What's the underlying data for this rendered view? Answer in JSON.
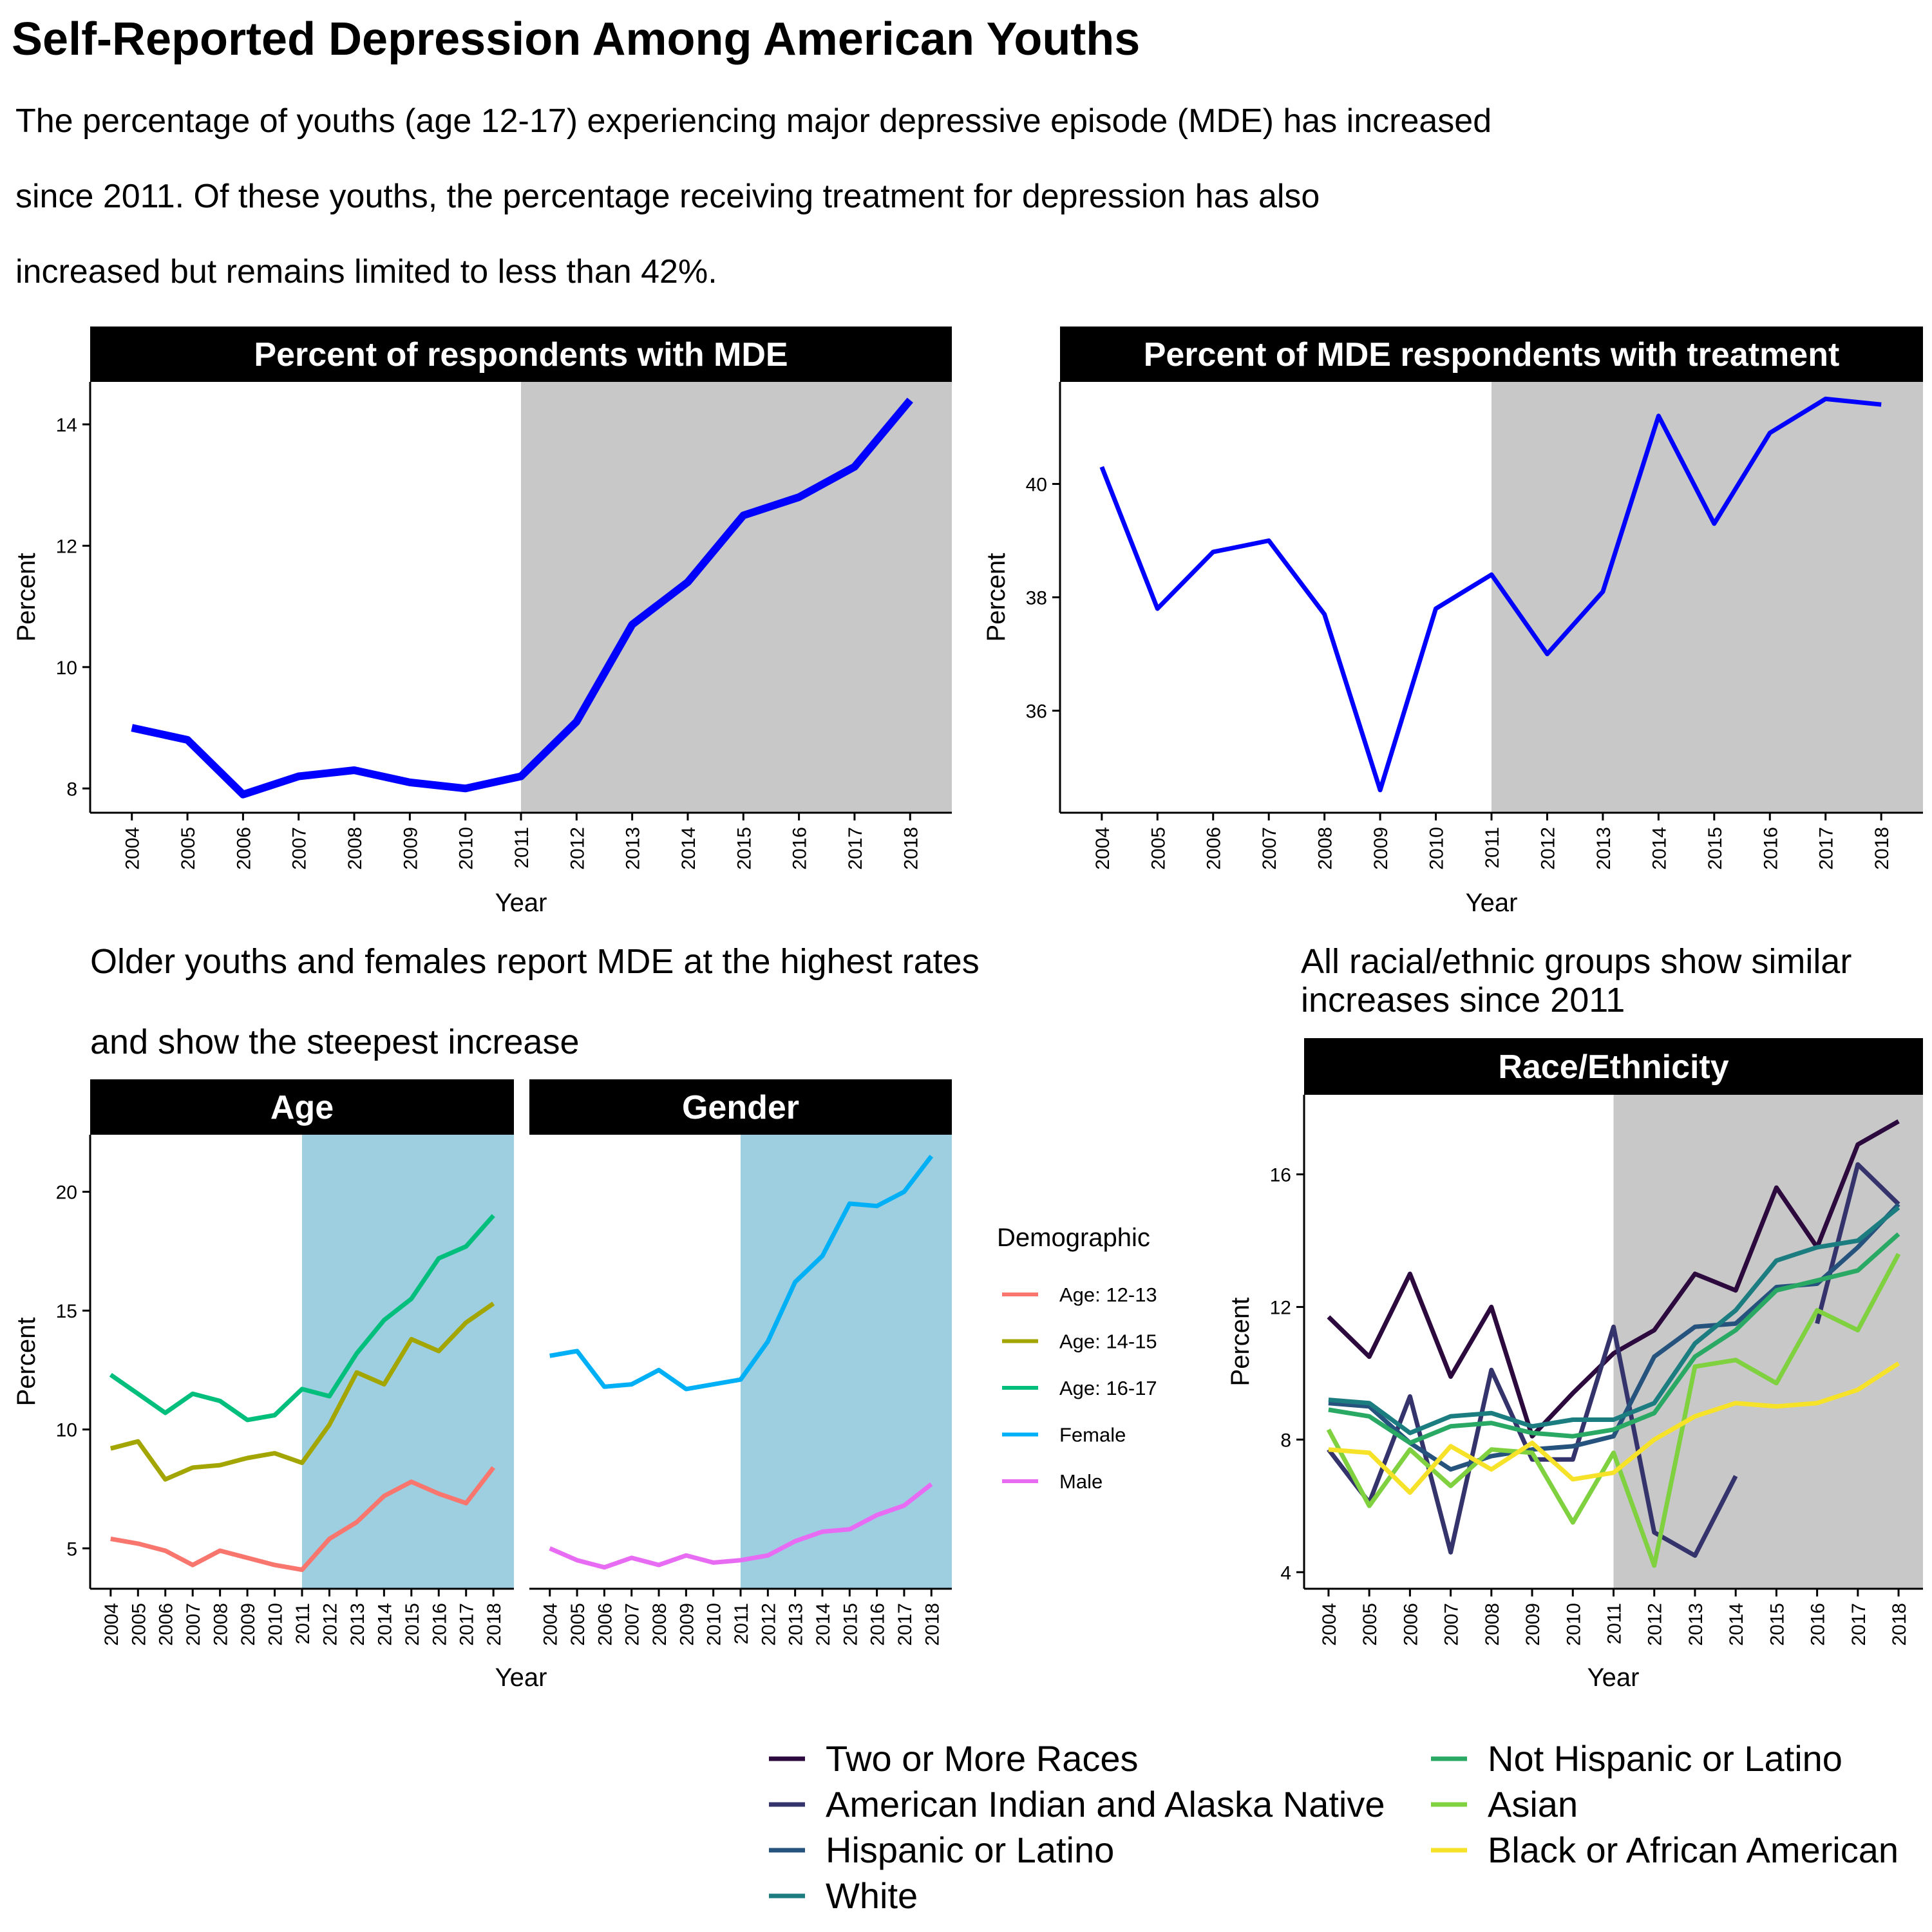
{
  "header": {
    "title": "Self-Reported Depression Among American Youths",
    "subtitle_lines": [
      "The percentage of youths (age 12-17) experiencing major depressive episode (MDE) has increased",
      " since 2011. Of these youths, the percentage receiving treatment for depression has also",
      "increased but remains limited to less than 42%."
    ]
  },
  "captions": {
    "demographics_line1": "Older youths and females report MDE at the highest rates",
    "demographics_line2": "and show the steepest increase",
    "race_line1": "All racial/ethnic groups show similar",
    "race_line2": "increases since 2011"
  },
  "colors": {
    "strip": "#000000",
    "shade_grey": "#c8c8c8",
    "shade_blue": "#9ecfe0",
    "main_line": "#0000ff"
  },
  "chart_data": [
    {
      "id": "mde",
      "type": "line",
      "title": "Percent of respondents with MDE",
      "xlabel": "Year",
      "ylabel": "Percent",
      "x": [
        2004,
        2005,
        2006,
        2007,
        2008,
        2009,
        2010,
        2011,
        2012,
        2013,
        2014,
        2015,
        2016,
        2017,
        2018
      ],
      "xlim": [
        2003.25,
        2018.75
      ],
      "ylim": [
        7.6,
        14.7
      ],
      "yticks": [
        8,
        10,
        12,
        14
      ],
      "shade_from": 2011,
      "series": [
        {
          "values": [
            9.0,
            8.8,
            7.9,
            8.2,
            8.3,
            8.1,
            8.0,
            8.2,
            9.1,
            10.7,
            11.4,
            12.5,
            12.8,
            13.3,
            14.4
          ]
        }
      ]
    },
    {
      "id": "treatment",
      "type": "line",
      "title": "Percent of MDE respondents with treatment",
      "xlabel": "Year",
      "ylabel": "Percent",
      "x": [
        2004,
        2005,
        2006,
        2007,
        2008,
        2009,
        2010,
        2011,
        2012,
        2013,
        2014,
        2015,
        2016,
        2017,
        2018
      ],
      "xlim": [
        2003.25,
        2018.75
      ],
      "ylim": [
        34.2,
        41.8
      ],
      "yticks": [
        36,
        38,
        40
      ],
      "shade_from": 2011,
      "series": [
        {
          "values": [
            40.3,
            37.8,
            38.8,
            39.0,
            37.7,
            34.6,
            37.8,
            38.4,
            37.0,
            38.1,
            41.2,
            39.3,
            40.9,
            41.5,
            41.4
          ]
        }
      ]
    },
    {
      "id": "age",
      "type": "line",
      "title": "Age",
      "xlabel": "Year",
      "ylabel": "Percent",
      "x": [
        2004,
        2005,
        2006,
        2007,
        2008,
        2009,
        2010,
        2011,
        2012,
        2013,
        2014,
        2015,
        2016,
        2017,
        2018
      ],
      "xlim": [
        2003.25,
        2018.75
      ],
      "ylim": [
        3.3,
        22.4
      ],
      "yticks": [
        5,
        10,
        15,
        20
      ],
      "shade_from": 2011,
      "series": [
        {
          "name": "Age: 12-13",
          "color": "#f8766d",
          "values": [
            5.4,
            5.2,
            4.9,
            4.3,
            4.9,
            4.6,
            4.3,
            4.1,
            5.4,
            6.1,
            7.2,
            7.8,
            7.3,
            6.9,
            8.4
          ]
        },
        {
          "name": "Age: 14-15",
          "color": "#a3a500",
          "values": [
            9.2,
            9.5,
            7.9,
            8.4,
            8.5,
            8.8,
            9.0,
            8.6,
            10.2,
            12.4,
            11.9,
            13.8,
            13.3,
            14.5,
            15.3
          ]
        },
        {
          "name": "Age: 16-17",
          "color": "#00bf7d",
          "values": [
            12.3,
            11.5,
            10.7,
            11.5,
            11.2,
            10.4,
            10.6,
            11.7,
            11.4,
            13.2,
            14.6,
            15.5,
            17.2,
            17.7,
            19.0
          ]
        }
      ]
    },
    {
      "id": "gender",
      "type": "line",
      "title": "Gender",
      "xlabel": "Year",
      "x": [
        2004,
        2005,
        2006,
        2007,
        2008,
        2009,
        2010,
        2011,
        2012,
        2013,
        2014,
        2015,
        2016,
        2017,
        2018
      ],
      "xlim": [
        2003.25,
        2018.75
      ],
      "ylim": [
        3.3,
        22.4
      ],
      "shade_from": 2011,
      "series": [
        {
          "name": "Female",
          "color": "#00b0f6",
          "values": [
            13.1,
            13.3,
            11.8,
            11.9,
            12.5,
            11.7,
            11.9,
            12.1,
            13.7,
            16.2,
            17.3,
            19.5,
            19.4,
            20.0,
            21.5
          ]
        },
        {
          "name": "Male",
          "color": "#e76bf3",
          "values": [
            5.0,
            4.5,
            4.2,
            4.6,
            4.3,
            4.7,
            4.4,
            4.5,
            4.7,
            5.3,
            5.7,
            5.8,
            6.4,
            6.8,
            7.7
          ]
        }
      ]
    },
    {
      "id": "race",
      "type": "line",
      "title": "Race/Ethnicity",
      "xlabel": "Year",
      "ylabel": "Percent",
      "x": [
        2004,
        2005,
        2006,
        2007,
        2008,
        2009,
        2010,
        2011,
        2012,
        2013,
        2014,
        2015,
        2016,
        2017,
        2018
      ],
      "xlim": [
        2003.4,
        2018.6
      ],
      "ylim": [
        3.5,
        18.4
      ],
      "yticks": [
        4,
        8,
        12,
        16
      ],
      "shade_from": 2011,
      "series": [
        {
          "name": "Two or More Races",
          "color": "#2d0a3e",
          "values": [
            11.7,
            10.5,
            13.0,
            9.9,
            12.0,
            8.1,
            9.4,
            10.6,
            11.3,
            13.0,
            12.5,
            15.6,
            13.8,
            16.9,
            17.6
          ]
        },
        {
          "name": "American Indian and Alaska Native",
          "color": "#35336c",
          "values": [
            7.7,
            6.1,
            9.3,
            4.6,
            10.1,
            7.4,
            7.4,
            11.4,
            5.2,
            4.5,
            6.9,
            null,
            11.5,
            16.3,
            15.1
          ]
        },
        {
          "name": "Hispanic or Latino",
          "color": "#26537d",
          "values": [
            9.1,
            9.0,
            7.9,
            7.1,
            7.5,
            7.7,
            7.8,
            8.1,
            10.5,
            11.4,
            11.5,
            12.6,
            12.7,
            13.8,
            15.1
          ]
        },
        {
          "name": "White",
          "color": "#1c7d80",
          "values": [
            9.2,
            9.1,
            8.2,
            8.7,
            8.8,
            8.4,
            8.6,
            8.6,
            9.1,
            10.9,
            11.9,
            13.4,
            13.8,
            14.0,
            15.0
          ]
        },
        {
          "name": "Not Hispanic or Latino",
          "color": "#2aa964",
          "values": [
            8.9,
            8.7,
            7.9,
            8.4,
            8.5,
            8.2,
            8.1,
            8.3,
            8.8,
            10.5,
            11.3,
            12.5,
            12.8,
            13.1,
            14.2
          ]
        },
        {
          "name": "Asian",
          "color": "#7fd13f",
          "values": [
            8.3,
            6.0,
            7.7,
            6.6,
            7.7,
            7.6,
            5.5,
            7.6,
            4.2,
            10.2,
            10.4,
            9.7,
            11.9,
            11.3,
            13.6
          ]
        },
        {
          "name": "Black or African American",
          "color": "#f7e22a",
          "values": [
            7.7,
            7.6,
            6.4,
            7.8,
            7.1,
            7.9,
            6.8,
            7.0,
            8.0,
            8.7,
            9.1,
            9.0,
            9.1,
            9.5,
            10.3
          ]
        }
      ]
    }
  ],
  "demographic_legend": {
    "title": "Demographic",
    "items": [
      {
        "label": "Age: 12-13",
        "color": "#f8766d"
      },
      {
        "label": "Age: 14-15",
        "color": "#a3a500"
      },
      {
        "label": "Age: 16-17",
        "color": "#00bf7d"
      },
      {
        "label": "Female",
        "color": "#00b0f6"
      },
      {
        "label": "Male",
        "color": "#e76bf3"
      }
    ]
  },
  "race_legend": {
    "items": [
      {
        "label": "Two or More Races",
        "color": "#2d0a3e"
      },
      {
        "label": "American Indian and Alaska Native",
        "color": "#35336c"
      },
      {
        "label": "Hispanic or Latino",
        "color": "#26537d"
      },
      {
        "label": "White",
        "color": "#1c7d80"
      },
      {
        "label": "Not Hispanic or Latino",
        "color": "#2aa964"
      },
      {
        "label": "Asian",
        "color": "#7fd13f"
      },
      {
        "label": "Black or African American",
        "color": "#f7e22a"
      }
    ]
  }
}
